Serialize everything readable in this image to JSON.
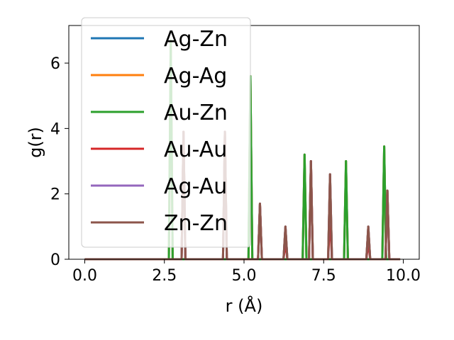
{
  "chart_data": {
    "type": "line",
    "title": "",
    "xlabel": "r (Å)",
    "ylabel": "g(r)",
    "xlim": [
      -0.5,
      10.5
    ],
    "ylim": [
      0,
      7.15
    ],
    "xticks": [
      0.0,
      2.5,
      5.0,
      7.5,
      10.0
    ],
    "xtick_labels": [
      "0.0",
      "2.5",
      "5.0",
      "7.5",
      "10.0"
    ],
    "yticks": [
      0,
      2,
      4,
      6
    ],
    "ytick_labels": [
      "0",
      "2",
      "4",
      "6"
    ],
    "grid": false,
    "legend_position": "upper-left",
    "series": [
      {
        "name": "Ag-Zn",
        "color": "#1f77b4",
        "peaks": [
          [
            2.7,
            6.7
          ],
          [
            3.1,
            3.9
          ],
          [
            4.4,
            3.9
          ],
          [
            5.2,
            5.6
          ],
          [
            5.5,
            1.7
          ],
          [
            6.3,
            1.0
          ],
          [
            6.9,
            3.2
          ],
          [
            7.1,
            3.0
          ],
          [
            7.7,
            2.6
          ],
          [
            8.2,
            3.0
          ],
          [
            8.9,
            1.0
          ],
          [
            9.4,
            3.45
          ],
          [
            9.5,
            2.1
          ]
        ]
      },
      {
        "name": "Ag-Ag",
        "color": "#ff7f0e",
        "peaks": [
          [
            2.7,
            6.7
          ],
          [
            3.1,
            3.9
          ],
          [
            4.4,
            3.9
          ],
          [
            5.2,
            5.6
          ],
          [
            5.5,
            1.7
          ],
          [
            6.3,
            1.0
          ],
          [
            6.9,
            3.2
          ],
          [
            7.1,
            3.0
          ],
          [
            7.7,
            2.6
          ],
          [
            8.2,
            3.0
          ],
          [
            8.9,
            1.0
          ],
          [
            9.4,
            3.45
          ],
          [
            9.5,
            2.1
          ]
        ]
      },
      {
        "name": "Au-Zn",
        "color": "#2ca02c",
        "peaks": [
          [
            2.7,
            6.7
          ],
          [
            5.2,
            5.6
          ],
          [
            6.9,
            3.2
          ],
          [
            8.2,
            3.0
          ],
          [
            9.4,
            3.45
          ]
        ]
      },
      {
        "name": "Au-Au",
        "color": "#d62728",
        "peaks": [
          [
            3.1,
            3.9
          ],
          [
            4.4,
            3.9
          ],
          [
            5.5,
            1.7
          ],
          [
            6.3,
            0.5
          ],
          [
            7.1,
            3.0
          ],
          [
            7.7,
            1.3
          ],
          [
            8.9,
            0.5
          ],
          [
            9.5,
            2.1
          ]
        ]
      },
      {
        "name": "Ag-Au",
        "color": "#9467bd",
        "peaks": [
          [
            3.1,
            3.9
          ],
          [
            4.4,
            3.9
          ],
          [
            5.5,
            1.7
          ],
          [
            6.3,
            1.0
          ],
          [
            7.1,
            3.0
          ],
          [
            7.7,
            2.6
          ],
          [
            8.9,
            1.0
          ],
          [
            9.5,
            2.1
          ]
        ]
      },
      {
        "name": "Zn-Zn",
        "color": "#8c564b",
        "peaks": [
          [
            3.1,
            3.9
          ],
          [
            4.4,
            3.9
          ],
          [
            5.5,
            1.7
          ],
          [
            6.3,
            1.0
          ],
          [
            7.1,
            3.0
          ],
          [
            7.7,
            2.6
          ],
          [
            8.9,
            1.0
          ],
          [
            9.5,
            2.1
          ]
        ]
      }
    ],
    "x_range": [
      0.0,
      9.9
    ]
  }
}
